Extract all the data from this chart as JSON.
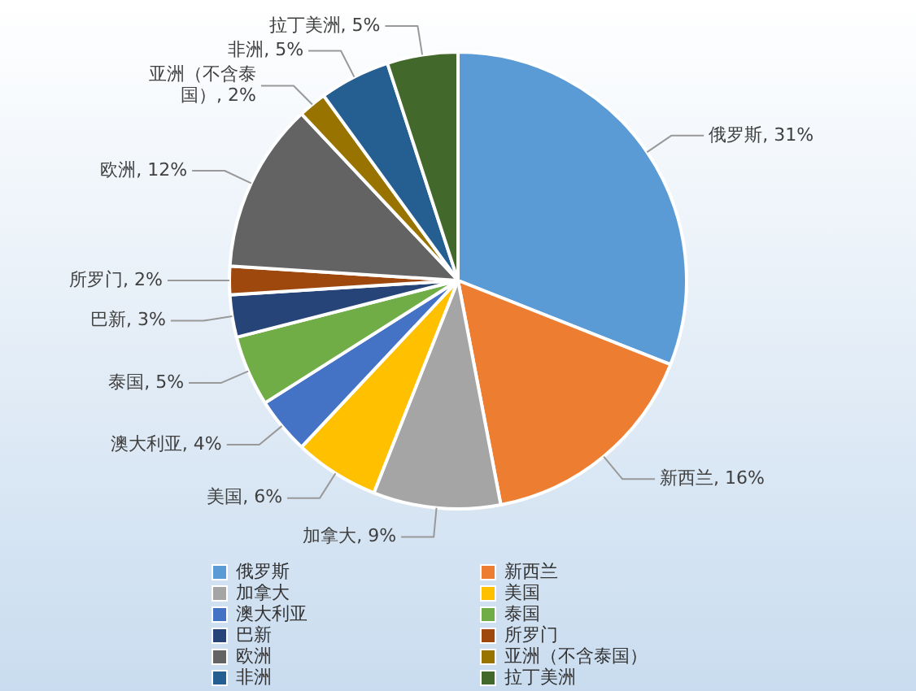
{
  "chart_data": {
    "type": "pie",
    "categories": [
      "俄罗斯",
      "新西兰",
      "加拿大",
      "美国",
      "澳大利亚",
      "泰国",
      "巴新",
      "所罗门",
      "欧洲",
      "亚洲（不含泰国）",
      "非洲",
      "拉丁美洲"
    ],
    "values": [
      31,
      16,
      9,
      6,
      4,
      5,
      3,
      2,
      12,
      2,
      5,
      5
    ],
    "value_labels": [
      "俄罗斯, 31%",
      "新西兰, 16%",
      "加拿大, 9%",
      "美国, 6%",
      "澳大利亚, 4%",
      "泰国, 5%",
      "巴新, 3%",
      "所罗门, 2%",
      "欧洲, 12%",
      "亚洲（不含泰国）, 2%",
      "非洲, 5%",
      "拉丁美洲, 5%"
    ],
    "colors": [
      "#5b9bd5",
      "#ed7d31",
      "#a5a5a5",
      "#ffc000",
      "#4472c4",
      "#70ad47",
      "#264478",
      "#9e480e",
      "#636363",
      "#997300",
      "#255e91",
      "#43682b"
    ],
    "legend": "bottom"
  }
}
